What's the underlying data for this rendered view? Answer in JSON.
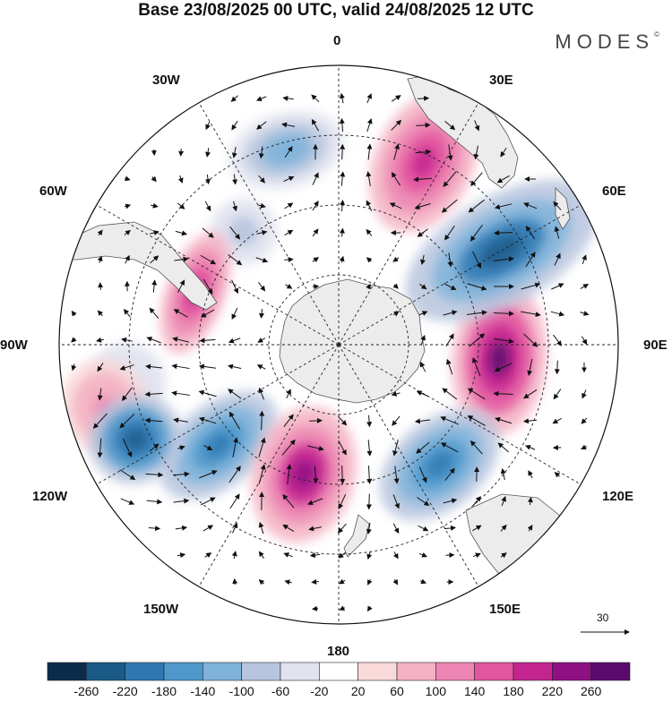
{
  "title": "Base 23/08/2025 00 UTC, valid 24/08/2025 12 UTC",
  "brand": "MODES",
  "brand_mark": "©",
  "map": {
    "projection": "south-polar-stereographic",
    "longitude_labels": {
      "lon_0": "0",
      "lon_30e": "30E",
      "lon_60e": "60E",
      "lon_90e": "90E",
      "lon_120e": "120E",
      "lon_150e": "150E",
      "lon_180": "180",
      "lon_150w": "150W",
      "lon_120w": "120W",
      "lon_90w": "90W",
      "lon_60w": "60W",
      "lon_30w": "30W"
    },
    "anomaly_centers": [
      {
        "name": "indian-ocean-high",
        "longitude": "95E",
        "value": 260
      },
      {
        "name": "southern-indian-low",
        "longitude": "60E",
        "value": -240
      },
      {
        "name": "south-atlantic-high",
        "longitude": "25E",
        "value": 200
      },
      {
        "name": "south-atlantic-low",
        "longitude": "15W",
        "value": -140
      },
      {
        "name": "southwest-atlantic-low",
        "longitude": "40W",
        "value": -80
      },
      {
        "name": "patagonia-high",
        "longitude": "70W",
        "value": 180
      },
      {
        "name": "southeast-pacific-low",
        "longitude": "100W",
        "value": -60
      },
      {
        "name": "east-pacific-high",
        "longitude": "105W",
        "value": 120
      },
      {
        "name": "central-pacific-low-north",
        "longitude": "130W",
        "value": -220
      },
      {
        "name": "central-pacific-low-south",
        "longitude": "115W",
        "value": -260
      },
      {
        "name": "west-pacific-high",
        "longitude": "165W",
        "value": 240
      },
      {
        "name": "tasman-low",
        "longitude": "140E",
        "value": -200
      }
    ],
    "wind_reference": {
      "label": "30"
    }
  },
  "colorbar": {
    "colors": [
      "#0c2c4b",
      "#1a5a87",
      "#2e78b2",
      "#4e98cb",
      "#7fb3da",
      "#b8c5de",
      "#e1e3ef",
      "#ffffff",
      "#f9d9d9",
      "#f4b1c3",
      "#ec85b1",
      "#e2559f",
      "#c32490",
      "#8f1083",
      "#5a0a6d"
    ],
    "tick_labels": [
      "-260",
      "-220",
      "-180",
      "-140",
      "-100",
      "-60",
      "-20",
      "20",
      "60",
      "100",
      "140",
      "180",
      "220",
      "260"
    ]
  }
}
